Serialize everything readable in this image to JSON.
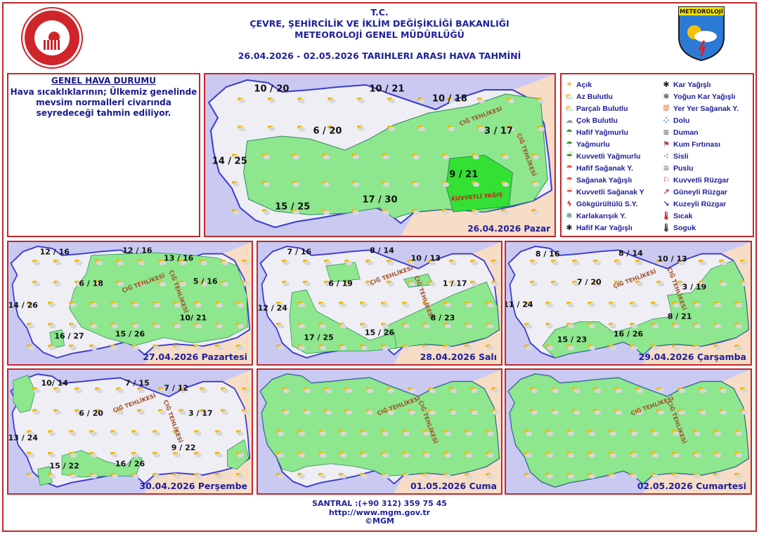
{
  "header": {
    "line1": "T.C.",
    "line2": "ÇEVRE, ŞEHİRCİLİK VE İKLİM DEĞİŞİKLİĞİ BAKANLIĞI",
    "line3": "METEOROLOJİ  GENEL  MÜDÜRLÜĞÜ",
    "range": "26.04.2026  -  02.05.2026    TARIHLERI  ARASI  HAVA  TAHMİNİ"
  },
  "logo_right": "METEOROLOJİ",
  "general": {
    "title": "GENEL HAVA DURUMU",
    "text": "Hava sıcaklıklarının; Ülkemiz genelinde mevsim normalleri civarında seyredeceği tahmin ediliyor."
  },
  "labels": {
    "avalanche": "ÇIĞ TEHLİKESİ",
    "heavy_rain": "KUVVETLİ YAĞIŞ"
  },
  "colors": {
    "sea": "#c9c9f2",
    "land": "#eeeef4",
    "rain": "#8ee68e",
    "heavy": "#33e033",
    "border": "#c0282d",
    "text": "#20209a"
  },
  "legend": [
    {
      "icon": "sun",
      "label": "Açık"
    },
    {
      "icon": "sun-small-cloud",
      "label": "Az Bulutlu"
    },
    {
      "icon": "sun-cloud",
      "label": "Parçalı Bulutlu"
    },
    {
      "icon": "cloud",
      "label": "Çok Bulutlu"
    },
    {
      "icon": "light-rain",
      "label": "Hafif Yağmurlu"
    },
    {
      "icon": "rain",
      "label": "Yağmurlu"
    },
    {
      "icon": "heavy-rain",
      "label": "Kuvvetli Yağmurlu"
    },
    {
      "icon": "light-shower",
      "label": "Hafif Sağanak Y."
    },
    {
      "icon": "shower",
      "label": "Sağanak Yağışlı"
    },
    {
      "icon": "heavy-shower",
      "label": "Kuvvetli Sağanak Y"
    },
    {
      "icon": "thunder",
      "label": "Gökgürültülü S.Y."
    },
    {
      "icon": "sleet",
      "label": "Karlakarışık Y."
    },
    {
      "icon": "light-snow",
      "label": "Hafif Kar Yağışlı"
    },
    {
      "icon": "snow",
      "label": "Kar Yağışlı"
    },
    {
      "icon": "heavy-snow",
      "label": "Yoğun Kar Yağışlı"
    },
    {
      "icon": "local-shower",
      "label": "Yer Yer Sağanak Y."
    },
    {
      "icon": "hail",
      "label": "Dolu"
    },
    {
      "icon": "smoke",
      "label": "Duman"
    },
    {
      "icon": "sandstorm",
      "label": "Kum Fırtınası"
    },
    {
      "icon": "fog",
      "label": "Sisli"
    },
    {
      "icon": "haze",
      "label": "Puslu"
    },
    {
      "icon": "strong-wind",
      "label": "Kuvvetli Rüzgar"
    },
    {
      "icon": "south-wind-arrow",
      "label": "Güneyli Rüzgar"
    },
    {
      "icon": "north-wind-arrow",
      "label": "Kuzeyli Rüzgar"
    },
    {
      "icon": "thermometer-hot",
      "label": "Sıcak"
    },
    {
      "icon": "thermometer-cold",
      "label": "Soguk"
    }
  ],
  "maps": [
    {
      "date": "26.04.2026 Pazar",
      "temps": [
        "10 / 20",
        "10 / 21",
        "10 / 18",
        "3 / 17",
        "6 / 20",
        "14 / 25",
        "9 / 21",
        "17 / 30",
        "15 / 25"
      ]
    },
    {
      "date": "27.04.2026 Pazartesi",
      "temps": [
        "12 / 16",
        "12 / 16",
        "13 / 16",
        "6 / 18",
        "5 / 16",
        "14 / 26",
        "10/ 21",
        "16 / 27",
        "15 / 26"
      ]
    },
    {
      "date": "28.04.2026 Salı",
      "temps": [
        "7 / 16",
        "8 / 14",
        "10 / 13",
        "6 / 19",
        "1 / 17",
        "12 / 24",
        "8 / 23",
        "17 / 25",
        "15 / 26"
      ]
    },
    {
      "date": "29.04.2026 Çarşamba",
      "temps": [
        "8 / 16",
        "8 / 14",
        "10 / 13",
        "7 / 20",
        "3 / 19",
        "11 / 24",
        "8 / 21",
        "15 / 23",
        "16 / 26"
      ]
    },
    {
      "date": "30.04.2026 Perşembe",
      "temps": [
        "10/ 14",
        "7 / 15",
        "7 / 12",
        "6 / 20",
        "3 / 17",
        "13 / 24",
        "9 / 22",
        "15 / 22",
        "16 / 26"
      ]
    },
    {
      "date": "01.05.2026 Cuma",
      "temps": []
    },
    {
      "date": "02.05.2026 Cumartesi",
      "temps": []
    }
  ],
  "footer": {
    "phone": "SANTRAL :(+90 312) 359 75 45",
    "url": "http://www.mgm.gov.tr",
    "copy": "©MGM"
  }
}
